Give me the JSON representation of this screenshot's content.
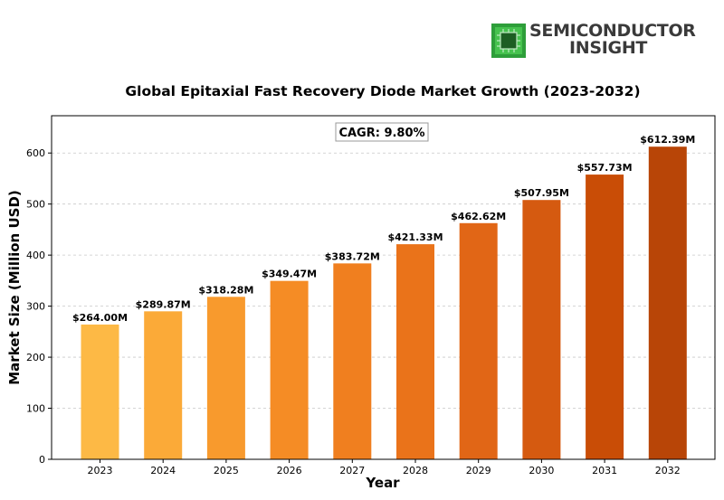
{
  "logo": {
    "line1": "SEMICONDUCTOR",
    "line2": "INSIGHT"
  },
  "chart_data": {
    "type": "bar",
    "title": "Global Epitaxial Fast Recovery Diode Market Growth (2023-2032)",
    "xlabel": "Year",
    "ylabel": "Market Size (Million USD)",
    "categories": [
      "2023",
      "2024",
      "2025",
      "2026",
      "2027",
      "2028",
      "2029",
      "2030",
      "2031",
      "2032"
    ],
    "values": [
      264.0,
      289.87,
      318.28,
      349.47,
      383.72,
      421.33,
      462.62,
      507.95,
      557.73,
      612.39
    ],
    "data_labels": [
      "$264.00M",
      "$289.87M",
      "$318.28M",
      "$349.47M",
      "$383.72M",
      "$421.33M",
      "$462.62M",
      "$507.95M",
      "$557.73M",
      "$612.39M"
    ],
    "yticks": [
      0,
      100,
      200,
      300,
      400,
      500,
      600
    ],
    "ylim": [
      0,
      673
    ],
    "grid": true,
    "annotation": "CAGR: 9.80%",
    "colors": [
      "#FDB945",
      "#FBAA38",
      "#F89A2D",
      "#F58C25",
      "#F07F1F",
      "#EA731A",
      "#E16616",
      "#D55A10",
      "#C94D06",
      "#B84507"
    ]
  }
}
